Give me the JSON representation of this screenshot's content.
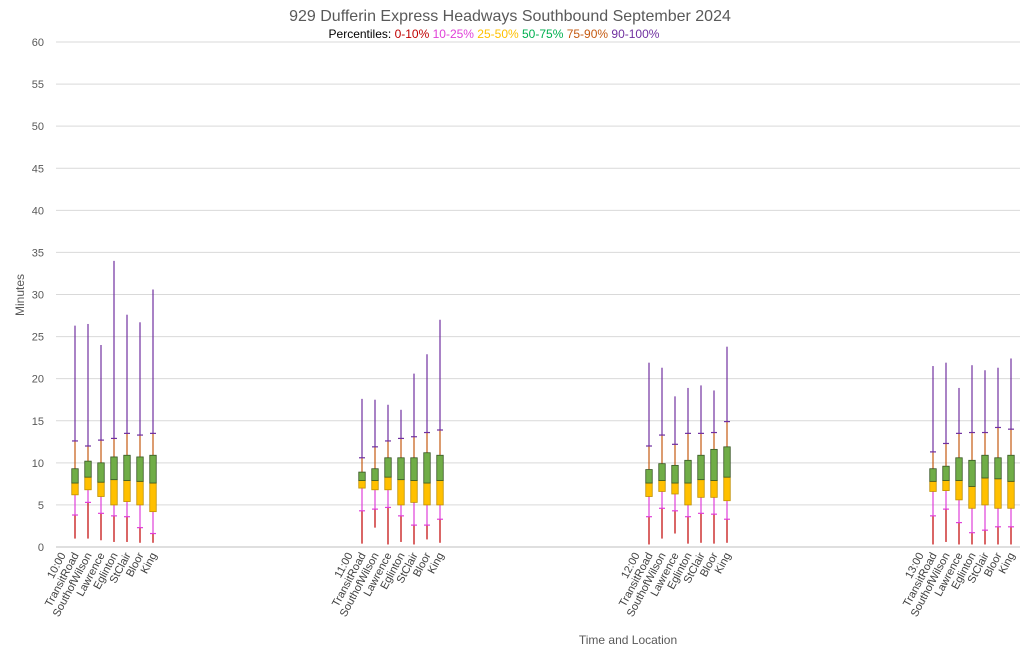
{
  "chart_data": {
    "type": "box",
    "title": "929 Dufferin Express Headways Southbound September 2024",
    "xlabel": "Time and Location",
    "ylabel": "Minutes",
    "ylim": [
      0,
      60
    ],
    "yticks": [
      0,
      5,
      10,
      15,
      20,
      25,
      30,
      35,
      40,
      45,
      50,
      55,
      60
    ],
    "grid": true,
    "legend": {
      "label": "Percentiles:",
      "entries": [
        {
          "name": "0-10%",
          "color": "#c00000"
        },
        {
          "name": "10-25%",
          "color": "#e040d8"
        },
        {
          "name": "25-50%",
          "color": "#ffc000"
        },
        {
          "name": "50-75%",
          "color": "#00b050"
        },
        {
          "name": "75-90%",
          "color": "#c55a11"
        },
        {
          "name": "90-100%",
          "color": "#7030a0"
        }
      ]
    },
    "colors": {
      "p0_10": "#c00000",
      "p10_25": "#e040d8",
      "box25_50_fill": "#ffc000",
      "box50_75_fill": "#70ad47",
      "box_outline": "#375623",
      "p75_90": "#c55a11",
      "p90_100": "#7030a0",
      "grid": "#d9d9d9"
    },
    "groups": [
      {
        "time": "10:00",
        "stations": [
          {
            "location": "TransitRoad",
            "min": 1.0,
            "p10": 3.8,
            "p25": 6.2,
            "p50": 7.6,
            "p75": 9.3,
            "p90": 12.6,
            "max": 26.3
          },
          {
            "location": "SouthofWilson",
            "min": 1.0,
            "p10": 5.3,
            "p25": 6.8,
            "p50": 8.3,
            "p75": 10.2,
            "p90": 12.0,
            "max": 26.5
          },
          {
            "location": "Lawrence",
            "min": 0.8,
            "p10": 4.0,
            "p25": 6.0,
            "p50": 7.7,
            "p75": 10.0,
            "p90": 12.7,
            "max": 24.0
          },
          {
            "location": "Eglinton",
            "min": 0.6,
            "p10": 3.7,
            "p25": 5.0,
            "p50": 8.0,
            "p75": 10.7,
            "p90": 12.9,
            "max": 34.0
          },
          {
            "location": "StClair",
            "min": 0.6,
            "p10": 3.6,
            "p25": 5.4,
            "p50": 7.9,
            "p75": 10.9,
            "p90": 13.5,
            "max": 27.6
          },
          {
            "location": "Bloor",
            "min": 0.5,
            "p10": 2.3,
            "p25": 5.0,
            "p50": 7.8,
            "p75": 10.7,
            "p90": 13.3,
            "max": 26.7
          },
          {
            "location": "King",
            "min": 0.5,
            "p10": 1.6,
            "p25": 4.2,
            "p50": 7.6,
            "p75": 10.9,
            "p90": 13.5,
            "max": 30.6
          }
        ]
      },
      {
        "time": "11:00",
        "stations": [
          {
            "location": "TransitRoad",
            "min": 0.4,
            "p10": 4.3,
            "p25": 7.0,
            "p50": 7.9,
            "p75": 8.9,
            "p90": 10.6,
            "max": 17.6
          },
          {
            "location": "SouthofWilson",
            "min": 2.3,
            "p10": 4.5,
            "p25": 6.8,
            "p50": 7.9,
            "p75": 9.3,
            "p90": 11.9,
            "max": 17.5
          },
          {
            "location": "Lawrence",
            "min": 0.3,
            "p10": 4.7,
            "p25": 6.8,
            "p50": 8.3,
            "p75": 10.6,
            "p90": 12.6,
            "max": 16.9
          },
          {
            "location": "Eglinton",
            "min": 0.6,
            "p10": 3.7,
            "p25": 5.0,
            "p50": 8.0,
            "p75": 10.6,
            "p90": 12.9,
            "max": 16.3
          },
          {
            "location": "StClair",
            "min": 0.3,
            "p10": 2.6,
            "p25": 5.3,
            "p50": 7.9,
            "p75": 10.6,
            "p90": 13.1,
            "max": 20.6
          },
          {
            "location": "Bloor",
            "min": 0.9,
            "p10": 2.6,
            "p25": 5.0,
            "p50": 7.6,
            "p75": 11.2,
            "p90": 13.6,
            "max": 22.9
          },
          {
            "location": "King",
            "min": 0.5,
            "p10": 3.3,
            "p25": 5.0,
            "p50": 7.9,
            "p75": 10.9,
            "p90": 13.9,
            "max": 27.0
          }
        ]
      },
      {
        "time": "12:00",
        "stations": [
          {
            "location": "TransitRoad",
            "min": 0.3,
            "p10": 3.6,
            "p25": 6.0,
            "p50": 7.6,
            "p75": 9.2,
            "p90": 12.0,
            "max": 21.9
          },
          {
            "location": "SouthofWilson",
            "min": 1.0,
            "p10": 4.6,
            "p25": 6.6,
            "p50": 7.9,
            "p75": 9.9,
            "p90": 13.3,
            "max": 21.3
          },
          {
            "location": "Lawrence",
            "min": 1.6,
            "p10": 4.3,
            "p25": 6.3,
            "p50": 7.6,
            "p75": 9.7,
            "p90": 12.2,
            "max": 17.9
          },
          {
            "location": "Eglinton",
            "min": 0.4,
            "p10": 3.6,
            "p25": 5.0,
            "p50": 7.6,
            "p75": 10.3,
            "p90": 13.5,
            "max": 18.9
          },
          {
            "location": "StClair",
            "min": 0.5,
            "p10": 4.0,
            "p25": 5.9,
            "p50": 8.0,
            "p75": 10.9,
            "p90": 13.5,
            "max": 19.2
          },
          {
            "location": "Bloor",
            "min": 0.4,
            "p10": 3.9,
            "p25": 5.9,
            "p50": 7.9,
            "p75": 11.6,
            "p90": 13.6,
            "max": 18.6
          },
          {
            "location": "King",
            "min": 0.5,
            "p10": 3.3,
            "p25": 5.5,
            "p50": 8.3,
            "p75": 11.9,
            "p90": 14.9,
            "max": 23.8
          }
        ]
      },
      {
        "time": "13:00",
        "stations": [
          {
            "location": "TransitRoad",
            "min": 0.3,
            "p10": 3.7,
            "p25": 6.6,
            "p50": 7.8,
            "p75": 9.3,
            "p90": 11.3,
            "max": 21.5
          },
          {
            "location": "SouthofWilson",
            "min": 0.6,
            "p10": 4.5,
            "p25": 6.7,
            "p50": 7.9,
            "p75": 9.6,
            "p90": 12.3,
            "max": 21.9
          },
          {
            "location": "Lawrence",
            "min": 0.3,
            "p10": 2.9,
            "p25": 5.6,
            "p50": 7.9,
            "p75": 10.6,
            "p90": 13.5,
            "max": 18.9
          },
          {
            "location": "Eglinton",
            "min": 0.3,
            "p10": 1.7,
            "p25": 4.6,
            "p50": 7.2,
            "p75": 10.3,
            "p90": 13.6,
            "max": 21.6
          },
          {
            "location": "StClair",
            "min": 0.3,
            "p10": 2.0,
            "p25": 5.0,
            "p50": 8.2,
            "p75": 10.9,
            "p90": 13.6,
            "max": 21.0
          },
          {
            "location": "Bloor",
            "min": 0.3,
            "p10": 2.4,
            "p25": 4.6,
            "p50": 8.1,
            "p75": 10.6,
            "p90": 14.2,
            "max": 21.3
          },
          {
            "location": "King",
            "min": 0.3,
            "p10": 2.4,
            "p25": 4.6,
            "p50": 7.8,
            "p75": 10.9,
            "p90": 14.0,
            "max": 22.4
          }
        ]
      }
    ]
  }
}
